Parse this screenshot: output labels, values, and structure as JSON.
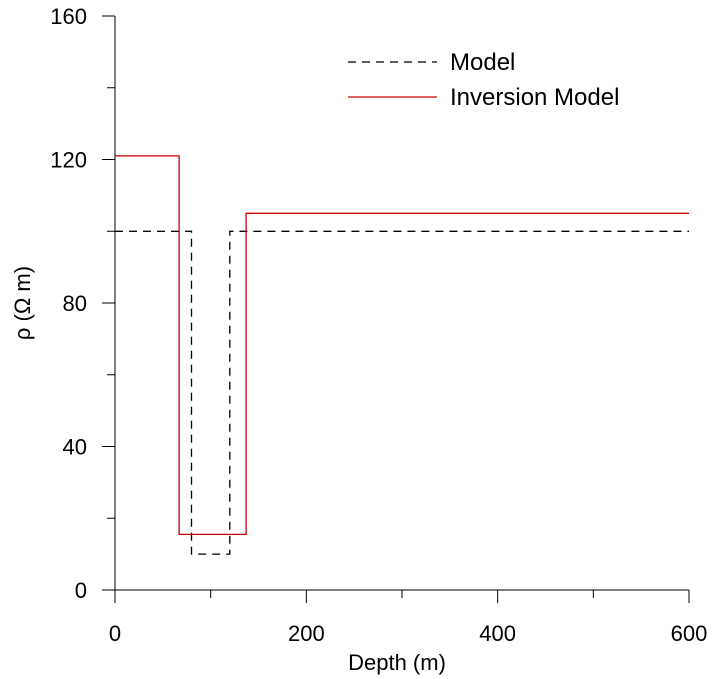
{
  "chart_data": {
    "type": "line",
    "xlabel": "Depth (m)",
    "ylabel": "ρ (Ω m)",
    "xlim": [
      0,
      600
    ],
    "ylim": [
      0,
      160
    ],
    "x_ticks": [
      0,
      200,
      400,
      600
    ],
    "x_minor_ticks": [
      100,
      300,
      500
    ],
    "y_ticks": [
      0,
      40,
      80,
      120,
      160
    ],
    "y_minor_ticks": [
      20,
      60,
      100,
      140
    ],
    "grid": false,
    "legend_position": "top-right",
    "series": [
      {
        "name": "Model",
        "style": "dashed",
        "color": "#000000",
        "x": [
          0,
          80,
          80,
          120,
          120,
          600
        ],
        "y": [
          100,
          100,
          10,
          10,
          100,
          100
        ]
      },
      {
        "name": "Inversion Model",
        "style": "solid",
        "color": "#cc0000",
        "x": [
          0,
          67,
          67,
          137,
          137,
          600
        ],
        "y": [
          121,
          121,
          15.5,
          15.5,
          105,
          105
        ]
      }
    ]
  }
}
